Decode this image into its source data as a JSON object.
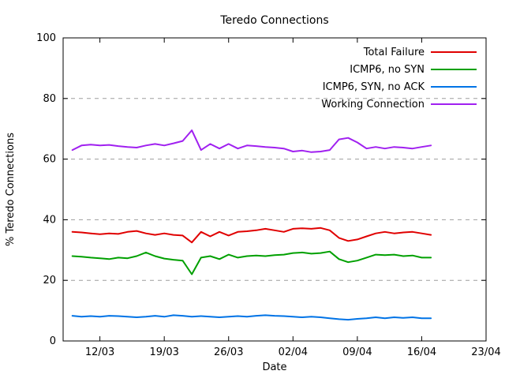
{
  "chart_data": {
    "type": "line",
    "title": "Teredo Connections",
    "xlabel": "Date",
    "ylabel": "% Teredo Connections",
    "xlim": [
      0,
      46
    ],
    "ylim": [
      0,
      100
    ],
    "grid": "horizontal-dashed",
    "legend_position": "top-right-inside",
    "yticks": [
      0,
      20,
      40,
      60,
      80,
      100
    ],
    "xticks": [
      {
        "pos": 4,
        "label": "12/03"
      },
      {
        "pos": 11,
        "label": "19/03"
      },
      {
        "pos": 18,
        "label": "26/03"
      },
      {
        "pos": 25,
        "label": "02/04"
      },
      {
        "pos": 32,
        "label": "09/04"
      },
      {
        "pos": 39,
        "label": "16/04"
      },
      {
        "pos": 46,
        "label": "23/04"
      }
    ],
    "x": [
      1,
      2,
      3,
      4,
      5,
      6,
      7,
      8,
      9,
      10,
      11,
      12,
      13,
      14,
      15,
      16,
      17,
      18,
      19,
      20,
      21,
      22,
      23,
      24,
      25,
      26,
      27,
      28,
      29,
      30,
      31,
      32,
      33,
      34,
      35,
      36,
      37,
      38,
      39,
      40
    ],
    "series": [
      {
        "name": "Total Failure",
        "color": "#e00000",
        "values": [
          36.0,
          35.8,
          35.5,
          35.2,
          35.5,
          35.3,
          36.0,
          36.3,
          35.5,
          35.0,
          35.5,
          35.0,
          34.8,
          32.5,
          36.0,
          34.5,
          36.0,
          34.8,
          36.0,
          36.2,
          36.5,
          37.0,
          36.5,
          36.0,
          37.0,
          37.2,
          37.0,
          37.3,
          36.5,
          34.0,
          33.0,
          33.5,
          34.5,
          35.5,
          36.0,
          35.5,
          35.8,
          36.0,
          35.5,
          35.0
        ]
      },
      {
        "name": "ICMP6, no SYN",
        "color": "#00a000",
        "values": [
          28.0,
          27.8,
          27.5,
          27.3,
          27.0,
          27.5,
          27.3,
          28.0,
          29.2,
          28.0,
          27.2,
          26.8,
          26.5,
          22.0,
          27.5,
          28.0,
          27.0,
          28.5,
          27.5,
          28.0,
          28.2,
          28.0,
          28.3,
          28.5,
          29.0,
          29.2,
          28.8,
          29.0,
          29.5,
          27.0,
          26.0,
          26.5,
          27.5,
          28.5,
          28.3,
          28.5,
          28.0,
          28.2,
          27.5,
          27.5
        ]
      },
      {
        "name": "ICMP6, SYN, no ACK",
        "color": "#0073e6",
        "values": [
          8.3,
          8.0,
          8.2,
          8.0,
          8.3,
          8.2,
          8.0,
          7.8,
          8.0,
          8.3,
          8.0,
          8.5,
          8.3,
          8.0,
          8.2,
          8.0,
          7.8,
          8.0,
          8.2,
          8.0,
          8.3,
          8.5,
          8.3,
          8.2,
          8.0,
          7.8,
          8.0,
          7.8,
          7.5,
          7.2,
          7.0,
          7.3,
          7.5,
          7.8,
          7.5,
          7.8,
          7.6,
          7.8,
          7.5,
          7.5
        ]
      },
      {
        "name": "Working Connection",
        "color": "#a020f0",
        "values": [
          63.0,
          64.5,
          64.8,
          64.5,
          64.7,
          64.3,
          64.0,
          63.8,
          64.5,
          65.0,
          64.5,
          65.2,
          66.0,
          69.5,
          63.0,
          65.0,
          63.5,
          65.0,
          63.5,
          64.5,
          64.3,
          64.0,
          63.8,
          63.5,
          62.5,
          62.8,
          62.3,
          62.5,
          63.0,
          66.5,
          67.0,
          65.5,
          63.5,
          64.0,
          63.5,
          64.0,
          63.8,
          63.5,
          64.0,
          64.5
        ]
      }
    ]
  }
}
